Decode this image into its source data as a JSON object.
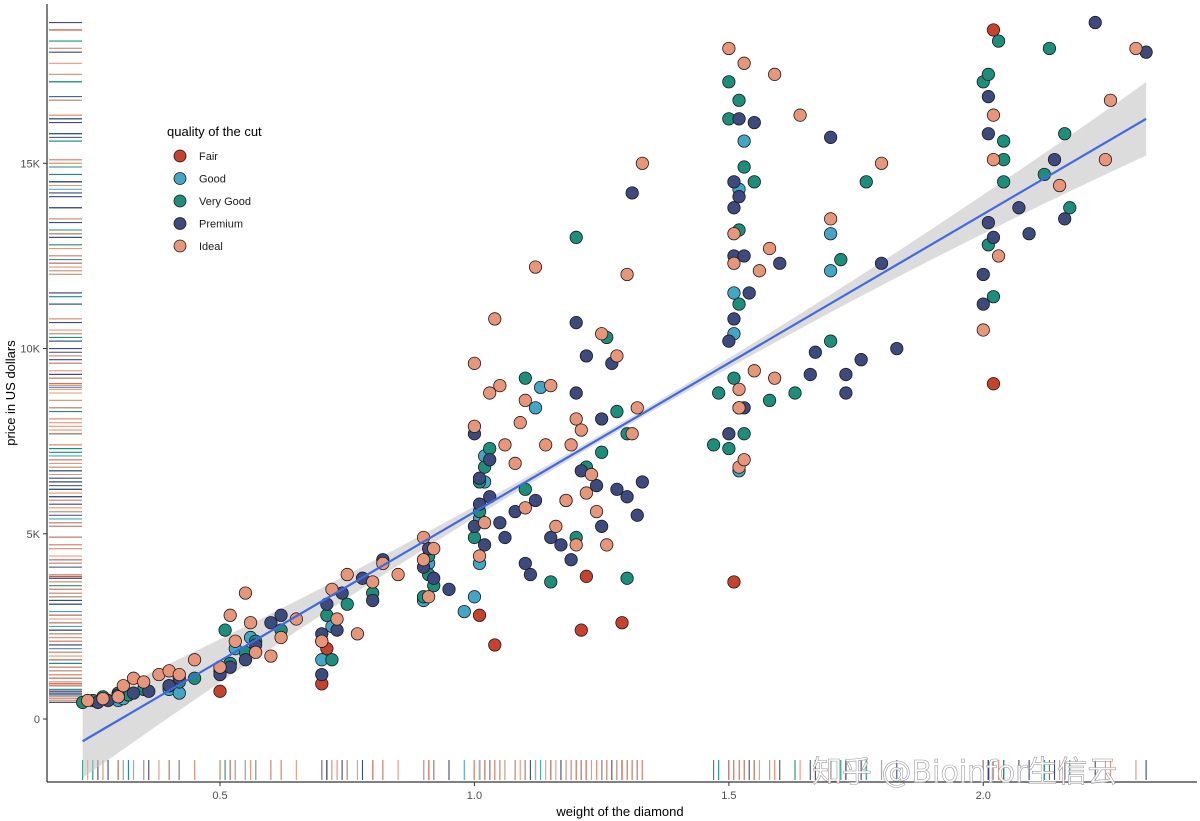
{
  "watermark": "知乎 @Bioinfor生信云",
  "chart_data": {
    "type": "scatter",
    "xlabel": "weight of the diamond",
    "ylabel": "price in US dollars",
    "xlim": [
      0.16,
      2.42
    ],
    "ylim": [
      -1700,
      19300
    ],
    "x_ticks": [
      {
        "value": 0.5,
        "label": "0.5"
      },
      {
        "value": 1.0,
        "label": "1.0"
      },
      {
        "value": 1.5,
        "label": "1.5"
      },
      {
        "value": 2.0,
        "label": "2.0"
      }
    ],
    "y_ticks": [
      {
        "value": 0,
        "label": "0"
      },
      {
        "value": 5000,
        "label": "5K"
      },
      {
        "value": 10000,
        "label": "10K"
      },
      {
        "value": 15000,
        "label": "15K"
      }
    ],
    "grid": false,
    "legend": {
      "title": "quality of the cut",
      "position": "top-left"
    },
    "series": [
      {
        "name": "Fair",
        "color": "#c8412d",
        "points": [
          [
            0.5,
            750
          ],
          [
            0.7,
            950
          ],
          [
            0.71,
            1900
          ],
          [
            1.01,
            2800
          ],
          [
            1.04,
            2000
          ],
          [
            1.21,
            2400
          ],
          [
            1.29,
            2600
          ],
          [
            1.22,
            3850
          ],
          [
            1.51,
            3700
          ],
          [
            2.02,
            9050
          ],
          [
            2.02,
            18600
          ]
        ]
      },
      {
        "name": "Good",
        "color": "#42a6c6",
        "points": [
          [
            0.3,
            500
          ],
          [
            0.31,
            550
          ],
          [
            0.4,
            800
          ],
          [
            0.42,
            700
          ],
          [
            0.52,
            1500
          ],
          [
            0.53,
            1900
          ],
          [
            0.56,
            2200
          ],
          [
            0.7,
            1600
          ],
          [
            0.72,
            2500
          ],
          [
            0.9,
            3200
          ],
          [
            0.91,
            4200
          ],
          [
            0.98,
            2900
          ],
          [
            1.0,
            3300
          ],
          [
            1.01,
            4200
          ],
          [
            1.01,
            5400
          ],
          [
            1.02,
            6400
          ],
          [
            1.02,
            7100
          ],
          [
            1.12,
            8400
          ],
          [
            1.13,
            8950
          ],
          [
            1.52,
            6700
          ],
          [
            1.52,
            8400
          ],
          [
            1.51,
            10400
          ],
          [
            1.51,
            11500
          ],
          [
            1.52,
            14300
          ],
          [
            1.53,
            15600
          ],
          [
            1.7,
            13100
          ],
          [
            1.7,
            12100
          ]
        ]
      },
      {
        "name": "Very Good",
        "color": "#1b8f7c",
        "points": [
          [
            0.23,
            450
          ],
          [
            0.25,
            500
          ],
          [
            0.27,
            600
          ],
          [
            0.3,
            700
          ],
          [
            0.32,
            650
          ],
          [
            0.35,
            800
          ],
          [
            0.4,
            900
          ],
          [
            0.42,
            1000
          ],
          [
            0.45,
            1100
          ],
          [
            0.5,
            1300
          ],
          [
            0.51,
            2400
          ],
          [
            0.52,
            1500
          ],
          [
            0.55,
            1800
          ],
          [
            0.57,
            2100
          ],
          [
            0.62,
            2400
          ],
          [
            0.7,
            2100
          ],
          [
            0.71,
            2800
          ],
          [
            0.72,
            1600
          ],
          [
            0.75,
            3100
          ],
          [
            0.8,
            3400
          ],
          [
            0.9,
            3300
          ],
          [
            0.91,
            3900
          ],
          [
            0.92,
            3600
          ],
          [
            0.91,
            4400
          ],
          [
            1.0,
            4900
          ],
          [
            1.01,
            5600
          ],
          [
            1.01,
            6400
          ],
          [
            1.02,
            6800
          ],
          [
            1.03,
            7300
          ],
          [
            1.1,
            6200
          ],
          [
            1.1,
            9200
          ],
          [
            1.15,
            3700
          ],
          [
            1.2,
            4900
          ],
          [
            1.2,
            13000
          ],
          [
            1.22,
            6800
          ],
          [
            1.25,
            7200
          ],
          [
            1.26,
            10300
          ],
          [
            1.28,
            8300
          ],
          [
            1.3,
            3800
          ],
          [
            1.3,
            7700
          ],
          [
            1.47,
            7400
          ],
          [
            1.48,
            8800
          ],
          [
            1.5,
            7300
          ],
          [
            1.51,
            9200
          ],
          [
            1.52,
            11200
          ],
          [
            1.52,
            13200
          ],
          [
            1.5,
            16200
          ],
          [
            1.5,
            17200
          ],
          [
            1.52,
            16700
          ],
          [
            1.53,
            14900
          ],
          [
            1.53,
            7700
          ],
          [
            1.55,
            14500
          ],
          [
            1.58,
            8600
          ],
          [
            1.63,
            8800
          ],
          [
            1.7,
            10200
          ],
          [
            1.72,
            12400
          ],
          [
            1.77,
            14500
          ],
          [
            2.0,
            17200
          ],
          [
            2.01,
            17400
          ],
          [
            2.01,
            12800
          ],
          [
            2.02,
            11400
          ],
          [
            2.03,
            18300
          ],
          [
            2.04,
            15600
          ],
          [
            2.04,
            15100
          ],
          [
            2.04,
            14500
          ],
          [
            2.12,
            14700
          ],
          [
            2.13,
            18100
          ],
          [
            2.16,
            15800
          ],
          [
            2.17,
            13800
          ]
        ]
      },
      {
        "name": "Premium",
        "color": "#3c4a7d",
        "points": [
          [
            0.26,
            450
          ],
          [
            0.28,
            500
          ],
          [
            0.3,
            650
          ],
          [
            0.33,
            700
          ],
          [
            0.36,
            750
          ],
          [
            0.4,
            900
          ],
          [
            0.42,
            1100
          ],
          [
            0.5,
            1200
          ],
          [
            0.52,
            1400
          ],
          [
            0.55,
            1600
          ],
          [
            0.57,
            2000
          ],
          [
            0.6,
            2600
          ],
          [
            0.62,
            2800
          ],
          [
            0.7,
            2300
          ],
          [
            0.7,
            1200
          ],
          [
            0.71,
            3100
          ],
          [
            0.73,
            2400
          ],
          [
            0.74,
            3400
          ],
          [
            0.78,
            3800
          ],
          [
            0.8,
            3200
          ],
          [
            0.82,
            4300
          ],
          [
            0.9,
            4100
          ],
          [
            0.91,
            4600
          ],
          [
            0.92,
            3800
          ],
          [
            0.95,
            3500
          ],
          [
            1.0,
            5200
          ],
          [
            1.0,
            7700
          ],
          [
            1.01,
            6500
          ],
          [
            1.01,
            5800
          ],
          [
            1.02,
            4700
          ],
          [
            1.03,
            7000
          ],
          [
            1.03,
            6000
          ],
          [
            1.05,
            5300
          ],
          [
            1.06,
            4900
          ],
          [
            1.08,
            5600
          ],
          [
            1.1,
            4200
          ],
          [
            1.11,
            3900
          ],
          [
            1.12,
            5900
          ],
          [
            1.15,
            4900
          ],
          [
            1.17,
            4700
          ],
          [
            1.18,
            5900
          ],
          [
            1.19,
            4300
          ],
          [
            1.2,
            10700
          ],
          [
            1.2,
            8800
          ],
          [
            1.21,
            6700
          ],
          [
            1.22,
            9800
          ],
          [
            1.24,
            6300
          ],
          [
            1.25,
            5200
          ],
          [
            1.25,
            8100
          ],
          [
            1.27,
            9600
          ],
          [
            1.28,
            6200
          ],
          [
            1.3,
            6000
          ],
          [
            1.31,
            14200
          ],
          [
            1.32,
            5500
          ],
          [
            1.33,
            6400
          ],
          [
            1.5,
            7700
          ],
          [
            1.5,
            10200
          ],
          [
            1.51,
            10800
          ],
          [
            1.51,
            12500
          ],
          [
            1.51,
            13800
          ],
          [
            1.51,
            14500
          ],
          [
            1.52,
            16200
          ],
          [
            1.52,
            14100
          ],
          [
            1.53,
            12500
          ],
          [
            1.53,
            8400
          ],
          [
            1.54,
            11500
          ],
          [
            1.55,
            16100
          ],
          [
            1.6,
            12300
          ],
          [
            1.66,
            9300
          ],
          [
            1.67,
            9900
          ],
          [
            1.7,
            15700
          ],
          [
            1.73,
            9300
          ],
          [
            1.73,
            8800
          ],
          [
            1.76,
            9700
          ],
          [
            1.8,
            12300
          ],
          [
            1.83,
            10000
          ],
          [
            2.0,
            11200
          ],
          [
            2.0,
            12000
          ],
          [
            2.01,
            13400
          ],
          [
            2.01,
            15800
          ],
          [
            2.01,
            16800
          ],
          [
            2.02,
            13000
          ],
          [
            2.07,
            13800
          ],
          [
            2.09,
            13100
          ],
          [
            2.14,
            15100
          ],
          [
            2.16,
            13500
          ],
          [
            2.22,
            18800
          ],
          [
            2.32,
            18000
          ]
        ]
      },
      {
        "name": "Ideal",
        "color": "#e8967a",
        "points": [
          [
            0.24,
            500
          ],
          [
            0.27,
            550
          ],
          [
            0.3,
            600
          ],
          [
            0.31,
            900
          ],
          [
            0.33,
            1100
          ],
          [
            0.35,
            1000
          ],
          [
            0.38,
            1200
          ],
          [
            0.4,
            1300
          ],
          [
            0.42,
            1200
          ],
          [
            0.45,
            1600
          ],
          [
            0.5,
            1400
          ],
          [
            0.52,
            2800
          ],
          [
            0.53,
            2100
          ],
          [
            0.55,
            3400
          ],
          [
            0.56,
            2600
          ],
          [
            0.57,
            1800
          ],
          [
            0.6,
            1700
          ],
          [
            0.62,
            2200
          ],
          [
            0.65,
            2700
          ],
          [
            0.7,
            2100
          ],
          [
            0.72,
            3500
          ],
          [
            0.73,
            2700
          ],
          [
            0.75,
            3900
          ],
          [
            0.77,
            2300
          ],
          [
            0.8,
            3700
          ],
          [
            0.82,
            4200
          ],
          [
            0.85,
            3900
          ],
          [
            0.9,
            4900
          ],
          [
            0.9,
            4300
          ],
          [
            0.91,
            3300
          ],
          [
            0.92,
            4600
          ],
          [
            1.0,
            7900
          ],
          [
            1.0,
            9600
          ],
          [
            1.01,
            4400
          ],
          [
            1.02,
            5300
          ],
          [
            1.03,
            8800
          ],
          [
            1.04,
            10800
          ],
          [
            1.05,
            9000
          ],
          [
            1.06,
            7400
          ],
          [
            1.08,
            6900
          ],
          [
            1.09,
            8000
          ],
          [
            1.1,
            8600
          ],
          [
            1.1,
            5700
          ],
          [
            1.12,
            12200
          ],
          [
            1.14,
            7400
          ],
          [
            1.15,
            9000
          ],
          [
            1.16,
            5200
          ],
          [
            1.18,
            5900
          ],
          [
            1.19,
            7400
          ],
          [
            1.2,
            8100
          ],
          [
            1.2,
            4700
          ],
          [
            1.21,
            7800
          ],
          [
            1.22,
            6100
          ],
          [
            1.23,
            6600
          ],
          [
            1.24,
            5600
          ],
          [
            1.25,
            10400
          ],
          [
            1.26,
            4700
          ],
          [
            1.28,
            9800
          ],
          [
            1.3,
            12000
          ],
          [
            1.31,
            7700
          ],
          [
            1.32,
            8400
          ],
          [
            1.33,
            15000
          ],
          [
            1.5,
            18100
          ],
          [
            1.51,
            13100
          ],
          [
            1.51,
            12300
          ],
          [
            1.52,
            8900
          ],
          [
            1.52,
            8400
          ],
          [
            1.52,
            6800
          ],
          [
            1.53,
            7000
          ],
          [
            1.53,
            17700
          ],
          [
            1.55,
            9400
          ],
          [
            1.56,
            12100
          ],
          [
            1.58,
            12700
          ],
          [
            1.59,
            17400
          ],
          [
            1.59,
            9200
          ],
          [
            1.64,
            16300
          ],
          [
            1.7,
            13500
          ],
          [
            1.8,
            15000
          ],
          [
            2.0,
            10500
          ],
          [
            2.02,
            16300
          ],
          [
            2.02,
            15100
          ],
          [
            2.03,
            12500
          ],
          [
            2.15,
            14400
          ],
          [
            2.24,
            15100
          ],
          [
            2.25,
            16700
          ],
          [
            2.3,
            18100
          ]
        ]
      }
    ],
    "trend_line": {
      "method": "lm",
      "color": "#4169e1",
      "confidence_band": true,
      "x": [
        0.23,
        2.32
      ],
      "y": [
        -600,
        16200
      ]
    },
    "rugs": [
      "x-bottom",
      "y-left"
    ]
  }
}
